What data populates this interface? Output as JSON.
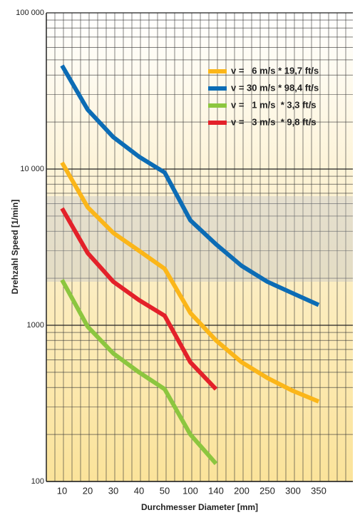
{
  "chart_data": {
    "type": "line",
    "x_label": "Durchmesser Diameter [mm]",
    "y_label": "Drehzahl Speed [1/min]",
    "categories": [
      "10",
      "20",
      "30",
      "40",
      "50",
      "100",
      "140",
      "200",
      "250",
      "300",
      "350"
    ],
    "log_y": true,
    "grid": true,
    "legend": "top-right",
    "ylim": [
      100,
      100000
    ],
    "yticks": [
      100,
      1000,
      {
        "value": 10000,
        "label": "10 000"
      },
      {
        "value": 100000,
        "label": "100 000"
      }
    ],
    "series": [
      {
        "name": "v =   6 m/s * 19,7 ft/s",
        "color": "#fbb619",
        "values": [
          11000,
          5700,
          3900,
          3000,
          2300,
          1200,
          800,
          580,
          460,
          380,
          325
        ]
      },
      {
        "name": "v = 30 m/s * 98,4 ft/s",
        "color": "#0c6cb5",
        "values": [
          46000,
          24000,
          16000,
          12000,
          9500,
          4700,
          3300,
          2400,
          1900,
          1600,
          1350
        ]
      },
      {
        "name": "v =   1 m/s  * 3,3 ft/s",
        "color": "#8cc63f",
        "values": [
          1950,
          980,
          660,
          500,
          390,
          200,
          130,
          null,
          null,
          null,
          null
        ]
      },
      {
        "name": "v =   3 m/s  * 9,8 ft/s",
        "color": "#e3212a",
        "values": [
          5600,
          2900,
          1900,
          1450,
          1150,
          580,
          390,
          null,
          null,
          null,
          null
        ]
      }
    ]
  }
}
